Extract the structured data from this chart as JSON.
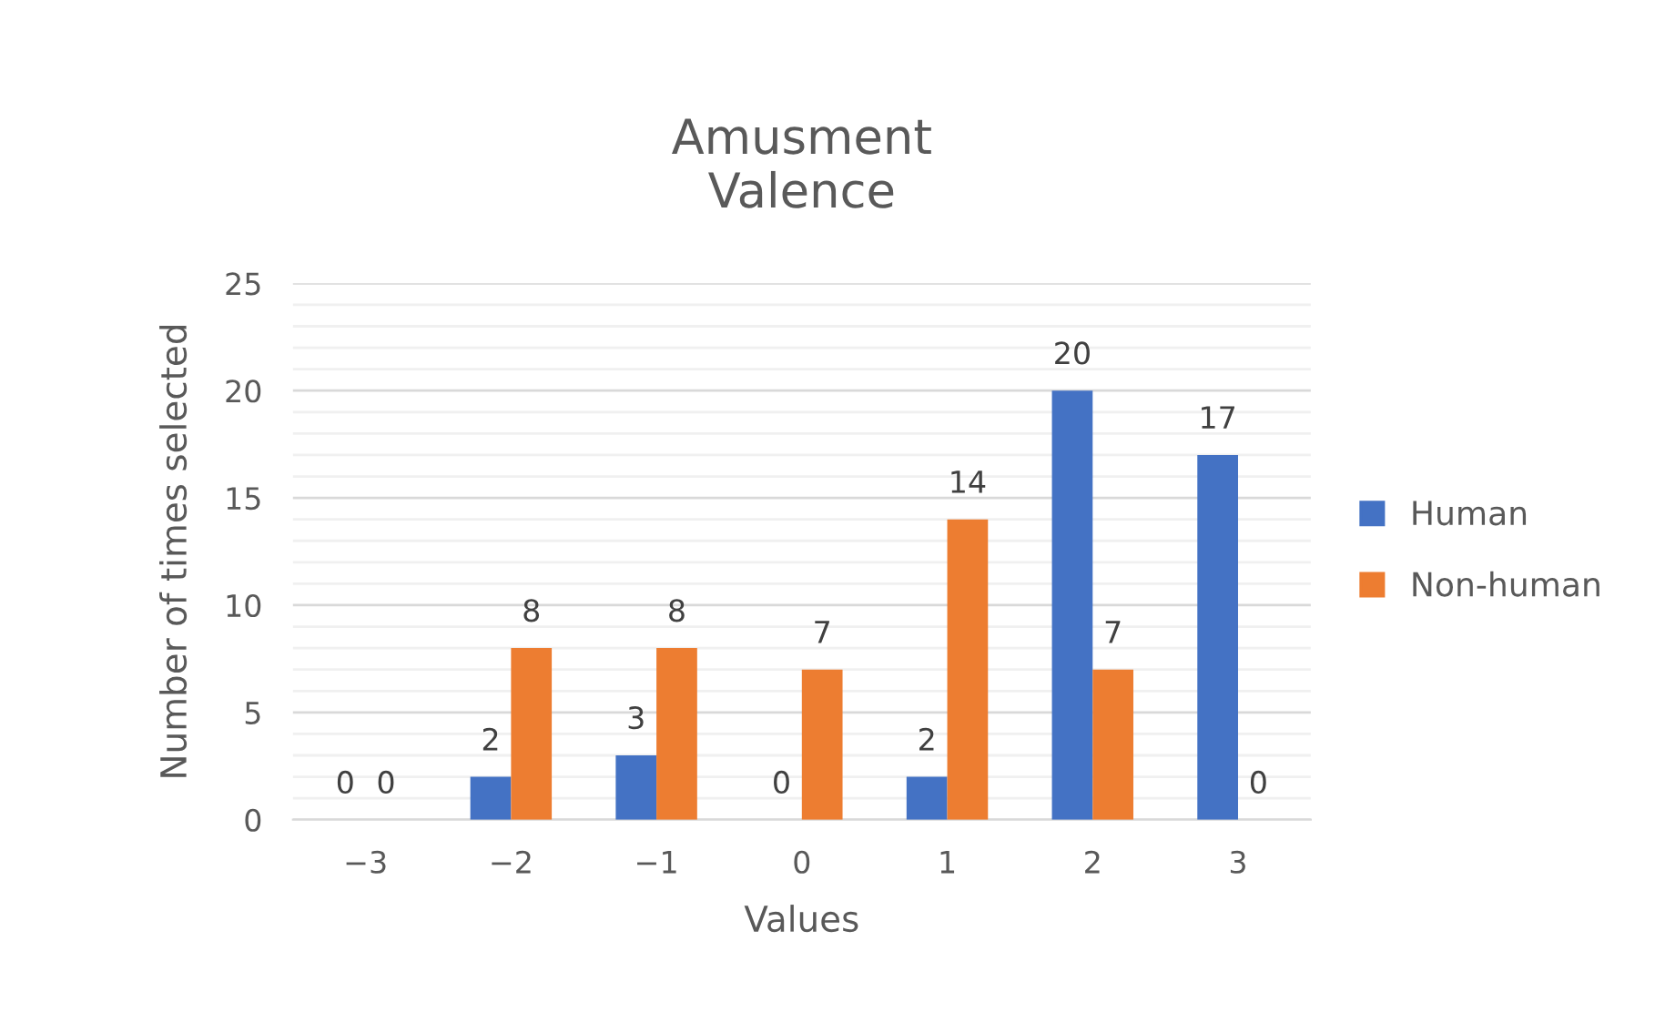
{
  "chart_data": {
    "type": "bar",
    "title": "Amusment\nValence",
    "xlabel": "Values",
    "ylabel": "Number of times selected",
    "categories": [
      "−3",
      "−2",
      "−1",
      "0",
      "1",
      "2",
      "3"
    ],
    "series": [
      {
        "name": "Human",
        "color": "#4472c4",
        "values": [
          0,
          2,
          3,
          0,
          2,
          20,
          17
        ]
      },
      {
        "name": "Non-human",
        "color": "#ed7d31",
        "values": [
          0,
          8,
          8,
          7,
          14,
          7,
          0
        ]
      }
    ],
    "ylim": [
      0,
      25
    ],
    "yticks": [
      0,
      {
        "value": 1,
        "label": null
      },
      {
        "value": 2,
        "label": null
      },
      {
        "value": 3,
        "label": null
      },
      {
        "value": 4,
        "label": null
      },
      5,
      {
        "value": 6,
        "label": null
      },
      {
        "value": 7,
        "label": null
      },
      {
        "value": 8,
        "label": null
      },
      {
        "value": 9,
        "label": null
      },
      10,
      {
        "value": 11,
        "label": null
      },
      {
        "value": 12,
        "label": null
      },
      {
        "value": 13,
        "label": null
      },
      {
        "value": 14,
        "label": null
      },
      15,
      {
        "value": 16,
        "label": null
      },
      {
        "value": 17,
        "label": null
      },
      {
        "value": 18,
        "label": null
      },
      {
        "value": 19,
        "label": null
      },
      20,
      {
        "value": 21,
        "label": null
      },
      {
        "value": 22,
        "label": null
      },
      {
        "value": 23,
        "label": null
      },
      {
        "value": 24,
        "label": null
      },
      25
    ],
    "grid": "y",
    "legend": "right",
    "data_labels": true
  }
}
